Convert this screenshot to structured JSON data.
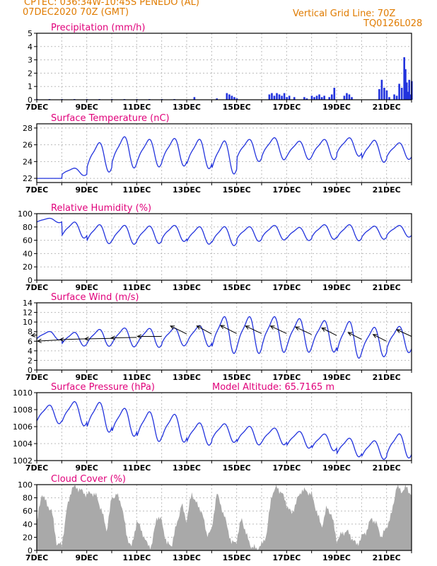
{
  "header": {
    "line1_left": "CPTEC:   036:34W-10:45S   PENEDO (AL)",
    "line2_left": "07DEC2020 70Z (GMT)",
    "line1_right": "Vertical Grid Line: 70Z",
    "line2_right": "TQ0126L028"
  },
  "colors": {
    "header": "#e07b00",
    "title": "#e0007a",
    "line": "#2233dd",
    "bar": "#2233dd",
    "cloud": "#a9a9a9",
    "grid": "#bbbbbb"
  },
  "chart_data": [
    {
      "type": "bar",
      "title": "Precipitation (mm/h)",
      "xlabel_ticks": [
        "7DEC",
        "9DEC",
        "11DEC",
        "13DEC",
        "15DEC",
        "17DEC",
        "19DEC",
        "21DEC"
      ],
      "x_range_days": [
        7,
        22
      ],
      "ylim": [
        0,
        5
      ],
      "yticks": [
        0,
        1,
        2,
        3,
        4,
        5
      ],
      "grid": true,
      "values": [
        [
          7.0,
          0.05
        ],
        [
          7.5,
          0.05
        ],
        [
          8.0,
          0.05
        ],
        [
          8.5,
          0.05
        ],
        [
          9.0,
          0.05
        ],
        [
          9.5,
          0.05
        ],
        [
          10.0,
          0.05
        ],
        [
          10.5,
          0.05
        ],
        [
          11.0,
          0.05
        ],
        [
          11.5,
          0.05
        ],
        [
          12.0,
          0.05
        ],
        [
          12.5,
          0.05
        ],
        [
          13.3,
          0.2
        ],
        [
          14.2,
          0.1
        ],
        [
          14.6,
          0.5
        ],
        [
          14.7,
          0.4
        ],
        [
          14.8,
          0.3
        ],
        [
          14.9,
          0.2
        ],
        [
          15.0,
          0.1
        ],
        [
          16.3,
          0.4
        ],
        [
          16.4,
          0.5
        ],
        [
          16.5,
          0.3
        ],
        [
          16.6,
          0.5
        ],
        [
          16.7,
          0.4
        ],
        [
          16.8,
          0.3
        ],
        [
          16.9,
          0.5
        ],
        [
          17.0,
          0.2
        ],
        [
          17.1,
          0.3
        ],
        [
          17.3,
          0.2
        ],
        [
          17.7,
          0.2
        ],
        [
          17.8,
          0.1
        ],
        [
          18.0,
          0.3
        ],
        [
          18.1,
          0.2
        ],
        [
          18.2,
          0.3
        ],
        [
          18.3,
          0.4
        ],
        [
          18.4,
          0.2
        ],
        [
          18.5,
          0.3
        ],
        [
          18.7,
          0.2
        ],
        [
          18.8,
          0.4
        ],
        [
          18.9,
          0.9
        ],
        [
          19.3,
          0.3
        ],
        [
          19.4,
          0.5
        ],
        [
          19.5,
          0.4
        ],
        [
          19.6,
          0.2
        ],
        [
          20.7,
          0.8
        ],
        [
          20.8,
          1.5
        ],
        [
          20.9,
          0.9
        ],
        [
          21.0,
          0.7
        ],
        [
          21.1,
          0.2
        ],
        [
          21.3,
          0.4
        ],
        [
          21.4,
          0.3
        ],
        [
          21.5,
          1.2
        ],
        [
          21.6,
          0.9
        ],
        [
          21.7,
          3.2
        ],
        [
          21.75,
          2.3
        ],
        [
          21.8,
          1.3
        ],
        [
          21.85,
          0.6
        ],
        [
          21.9,
          1.5
        ],
        [
          21.95,
          0.4
        ],
        [
          22.0,
          1.4
        ]
      ]
    },
    {
      "type": "line",
      "title": "Surface Temperature (nC)",
      "xlabel_ticks": [
        "7DEC",
        "9DEC",
        "11DEC",
        "13DEC",
        "15DEC",
        "17DEC",
        "19DEC",
        "21DEC"
      ],
      "x_range_days": [
        7,
        22
      ],
      "ylim": [
        21.5,
        28.5
      ],
      "yticks": [
        22,
        24,
        26,
        28
      ],
      "grid": true,
      "base": [
        22.0,
        22.8,
        24.6,
        25.2,
        25.1,
        25.2,
        25.0,
        24.6,
        25.4,
        25.6,
        25.4,
        25.5,
        25.8,
        25.3,
        25.3,
        25.0
      ],
      "amplitude": [
        0.0,
        0.4,
        1.6,
        1.7,
        1.5,
        1.5,
        1.6,
        1.8,
        1.2,
        1.2,
        1.0,
        1.1,
        1.0,
        1.2,
        0.9,
        0.6
      ]
    },
    {
      "type": "line",
      "title": "Relative Humidity (%)",
      "xlabel_ticks": [
        "7DEC",
        "9DEC",
        "11DEC",
        "13DEC",
        "15DEC",
        "17DEC",
        "19DEC",
        "21DEC"
      ],
      "x_range_days": [
        7,
        22
      ],
      "ylim": [
        0,
        100
      ],
      "yticks": [
        0,
        20,
        40,
        60,
        80,
        100
      ],
      "grid": true,
      "base": [
        90,
        76,
        70,
        69,
        69,
        71,
        68,
        67,
        70,
        72,
        70,
        73,
        72,
        72,
        74,
        72
      ],
      "amplitude": [
        3,
        11,
        13,
        13,
        12,
        11,
        12,
        13,
        10,
        10,
        9,
        10,
        11,
        9,
        8,
        6
      ]
    },
    {
      "type": "line",
      "title": "Surface Wind (m/s)",
      "xlabel_ticks": [
        "7DEC",
        "9DEC",
        "11DEC",
        "13DEC",
        "15DEC",
        "17DEC",
        "19DEC",
        "21DEC"
      ],
      "x_range_days": [
        7,
        22
      ],
      "ylim": [
        0,
        14
      ],
      "yticks": [
        0,
        2,
        4,
        6,
        8,
        10,
        12,
        14
      ],
      "grid": true,
      "base": [
        7.2,
        6.5,
        6.8,
        6.9,
        6.8,
        7.0,
        7.2,
        7.5,
        7.5,
        7.6,
        7.4,
        7.2,
        6.5,
        6.0,
        6.5,
        7.2
      ],
      "amplitude": [
        0.8,
        1.3,
        1.6,
        1.8,
        1.8,
        1.7,
        2.0,
        3.5,
        3.5,
        3.4,
        3.2,
        3.0,
        3.5,
        2.8,
        2.5,
        2.0
      ],
      "vectors": [
        {
          "day": 7.0,
          "speed": 7.3,
          "u": -0.2,
          "v": -0.02
        },
        {
          "day": 8.0,
          "speed": 6.3,
          "u": -0.9,
          "v": -0.05
        },
        {
          "day": 9.0,
          "speed": 6.5,
          "u": -1.0,
          "v": -0.03
        },
        {
          "day": 10.0,
          "speed": 6.6,
          "u": -1.0,
          "v": -0.02
        },
        {
          "day": 11.0,
          "speed": 6.8,
          "u": -0.95,
          "v": -0.02
        },
        {
          "day": 12.0,
          "speed": 7.0,
          "u": -0.9,
          "v": 0.0
        },
        {
          "day": 13.0,
          "speed": 7.5,
          "u": -0.6,
          "v": 0.3
        },
        {
          "day": 14.0,
          "speed": 7.5,
          "u": -0.55,
          "v": 0.3
        },
        {
          "day": 15.0,
          "speed": 7.6,
          "u": -0.6,
          "v": 0.3
        },
        {
          "day": 16.0,
          "speed": 7.6,
          "u": -0.6,
          "v": 0.28
        },
        {
          "day": 17.0,
          "speed": 7.6,
          "u": -0.6,
          "v": 0.28
        },
        {
          "day": 18.0,
          "speed": 7.4,
          "u": -0.6,
          "v": 0.28
        },
        {
          "day": 19.0,
          "speed": 7.2,
          "u": -0.55,
          "v": 0.28
        },
        {
          "day": 20.0,
          "speed": 6.4,
          "u": -0.5,
          "v": 0.25
        },
        {
          "day": 21.0,
          "speed": 6.0,
          "u": -0.5,
          "v": 0.25
        },
        {
          "day": 22.0,
          "speed": 7.0,
          "u": -0.55,
          "v": 0.25
        }
      ]
    },
    {
      "type": "line",
      "title": "Surface Pressure (hPa)",
      "annotation": "Model Altitude: 65.7165 m",
      "xlabel_ticks": [
        "7DEC",
        "9DEC",
        "11DEC",
        "13DEC",
        "15DEC",
        "17DEC",
        "19DEC",
        "21DEC"
      ],
      "x_range_days": [
        7,
        22
      ],
      "ylim": [
        1002,
        1010
      ],
      "yticks": [
        1002,
        1004,
        1006,
        1008,
        1010
      ],
      "grid": true,
      "base": [
        1007.5,
        1007.6,
        1007.2,
        1006.6,
        1006.1,
        1005.9,
        1005.2,
        1005.3,
        1005.0,
        1004.9,
        1004.5,
        1004.2,
        1003.6,
        1003.3,
        1003.8,
        1003.2
      ],
      "amplitude": [
        1.0,
        1.3,
        1.6,
        1.5,
        1.6,
        1.5,
        1.2,
        1.0,
        1.0,
        0.9,
        0.9,
        0.9,
        1.0,
        1.0,
        1.3,
        1.1
      ]
    },
    {
      "type": "area",
      "title": "Cloud Cover (%)",
      "xlabel_ticks": [
        "7DEC",
        "9DEC",
        "11DEC",
        "13DEC",
        "15DEC",
        "17DEC",
        "19DEC",
        "21DEC"
      ],
      "x_range_days": [
        7,
        22
      ],
      "ylim": [
        0,
        100
      ],
      "yticks": [
        0,
        20,
        40,
        60,
        80,
        100
      ],
      "grid": true,
      "profile": [
        [
          7.0,
          40
        ],
        [
          7.2,
          88
        ],
        [
          7.4,
          70
        ],
        [
          7.6,
          60
        ],
        [
          7.8,
          10
        ],
        [
          8.0,
          8
        ],
        [
          8.2,
          62
        ],
        [
          8.4,
          95
        ],
        [
          8.6,
          96
        ],
        [
          8.8,
          90
        ],
        [
          9.0,
          85
        ],
        [
          9.2,
          88
        ],
        [
          9.4,
          82
        ],
        [
          9.6,
          60
        ],
        [
          9.8,
          30
        ],
        [
          10.0,
          80
        ],
        [
          10.2,
          85
        ],
        [
          10.4,
          70
        ],
        [
          10.6,
          22
        ],
        [
          10.8,
          4
        ],
        [
          11.0,
          45
        ],
        [
          11.2,
          30
        ],
        [
          11.4,
          10
        ],
        [
          11.6,
          6
        ],
        [
          11.8,
          52
        ],
        [
          12.0,
          45
        ],
        [
          12.2,
          10
        ],
        [
          12.4,
          8
        ],
        [
          12.6,
          40
        ],
        [
          12.8,
          70
        ],
        [
          13.0,
          45
        ],
        [
          13.2,
          88
        ],
        [
          13.4,
          70
        ],
        [
          13.6,
          60
        ],
        [
          13.8,
          25
        ],
        [
          14.0,
          30
        ],
        [
          14.2,
          88
        ],
        [
          14.4,
          65
        ],
        [
          14.6,
          40
        ],
        [
          14.8,
          10
        ],
        [
          15.0,
          15
        ],
        [
          15.2,
          50
        ],
        [
          15.4,
          22
        ],
        [
          15.6,
          5
        ],
        [
          15.8,
          3
        ],
        [
          16.0,
          8
        ],
        [
          16.2,
          25
        ],
        [
          16.4,
          85
        ],
        [
          16.6,
          96
        ],
        [
          16.8,
          88
        ],
        [
          17.0,
          70
        ],
        [
          17.2,
          55
        ],
        [
          17.4,
          75
        ],
        [
          17.6,
          92
        ],
        [
          17.8,
          90
        ],
        [
          18.0,
          85
        ],
        [
          18.2,
          60
        ],
        [
          18.4,
          35
        ],
        [
          18.6,
          65
        ],
        [
          18.8,
          55
        ],
        [
          19.0,
          15
        ],
        [
          19.2,
          25
        ],
        [
          19.4,
          30
        ],
        [
          19.6,
          20
        ],
        [
          19.8,
          8
        ],
        [
          20.0,
          20
        ],
        [
          20.2,
          30
        ],
        [
          20.4,
          50
        ],
        [
          20.6,
          40
        ],
        [
          20.8,
          20
        ],
        [
          21.0,
          35
        ],
        [
          21.2,
          55
        ],
        [
          21.4,
          98
        ],
        [
          21.6,
          90
        ],
        [
          21.8,
          96
        ],
        [
          22.0,
          84
        ]
      ]
    }
  ]
}
